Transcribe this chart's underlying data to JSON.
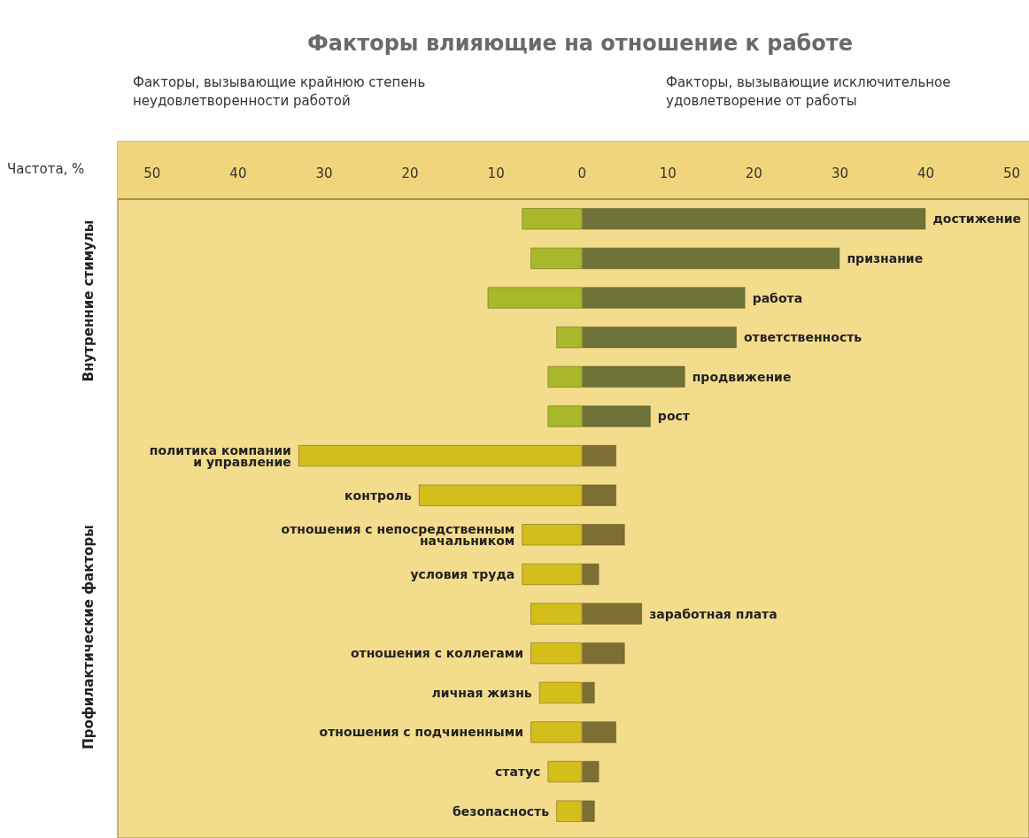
{
  "chart_data": {
    "type": "bar",
    "orientation": "horizontal",
    "stacked": true,
    "title": "Факторы влияющие на отношение к работе",
    "xlabel": "Частота, %",
    "annotations": [
      "Факторы, вызывающие крайнюю степень\nнеудовлетворенности работой",
      "Факторы, вызывающие исключительное\nудовлетворение от работы",
      "Внутренние стимулы",
      "Профилактические факторы"
    ],
    "categories": [
      "достижение",
      "признание",
      "работа",
      "ответственность",
      "продвижение",
      "рост",
      "политика компании\nи управление",
      "контроль",
      "отношения с непосредственным\nначальником",
      "условия труда",
      "заработная плата",
      "отношения с коллегами",
      "личная жизнь",
      "отношения с подчиненными",
      "статус",
      "безопасность"
    ],
    "series": [
      {
        "colors": [
          "#a8b82a",
          "#a8b82a",
          "#a8b82a",
          "#a8b82a",
          "#a8b82a",
          "#a8b82a",
          "#d4be1c",
          "#d4be1c",
          "#d4be1c",
          "#d4be1c",
          "#d4be1c",
          "#d4be1c",
          "#d4be1c",
          "#d4be1c",
          "#d4be1c",
          "#d4be1c"
        ],
        "values": [
          -7,
          -6,
          -11,
          -3,
          -4,
          -4,
          -33,
          -19,
          -7,
          -7,
          -6,
          -6,
          -5,
          -6,
          -4,
          -3
        ]
      },
      {
        "colors": [
          "#6e733a",
          "#6e733a",
          "#6e733a",
          "#6e733a",
          "#6e733a",
          "#6e733a",
          "#7d6f33",
          "#7d6f33",
          "#7d6f33",
          "#7d6f33",
          "#7d6f33",
          "#7d6f33",
          "#7d6f33",
          "#7d6f33",
          "#7d6f33",
          "#7d6f33"
        ],
        "values": [
          40,
          30,
          19,
          18,
          12,
          8,
          4,
          4,
          5,
          2,
          7,
          5,
          1.5,
          4,
          2,
          1.5
        ]
      }
    ],
    "xlim": [
      -54,
      52
    ],
    "xticks": [
      {
        "value": -50,
        "label": "50"
      },
      {
        "value": -40,
        "label": "40"
      },
      {
        "value": -30,
        "label": "30"
      },
      {
        "value": -20,
        "label": "20"
      },
      {
        "value": -10,
        "label": "10"
      },
      0,
      10,
      20,
      30,
      40,
      50
    ],
    "grid": false
  }
}
